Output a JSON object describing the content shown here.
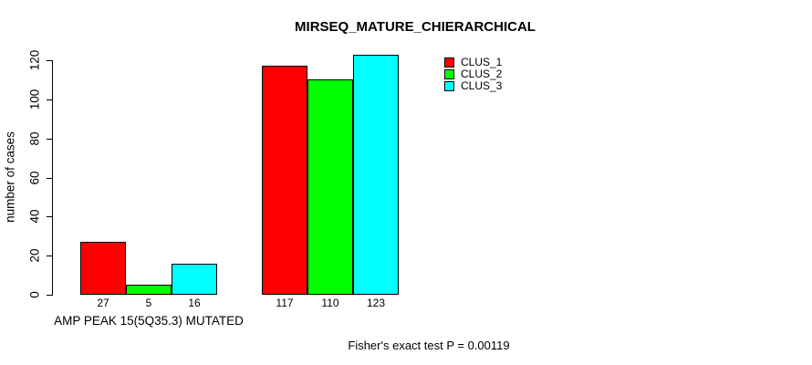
{
  "chart_data": {
    "type": "bar",
    "title": "MIRSEQ_MATURE_CHIERARCHICAL",
    "ylabel": "number of cases",
    "categories": [
      "AMP PEAK 15(5Q35.3) MUTATED",
      ""
    ],
    "series": [
      {
        "name": "CLUS_1",
        "color": "#ff0000",
        "values": [
          27,
          117
        ]
      },
      {
        "name": "CLUS_2",
        "color": "#00ff00",
        "values": [
          5,
          110
        ]
      },
      {
        "name": "CLUS_3",
        "color": "#00ffff",
        "values": [
          16,
          123
        ]
      }
    ],
    "yticks": [
      0,
      20,
      40,
      60,
      80,
      100,
      120
    ],
    "ylim": [
      0,
      120
    ],
    "grid": false,
    "bar_value_labels": true,
    "legend_position": "top-right",
    "annotation": "Fisher's exact test P = 0.00119",
    "background_color": "#ffffff",
    "axis_color": "#000000"
  }
}
